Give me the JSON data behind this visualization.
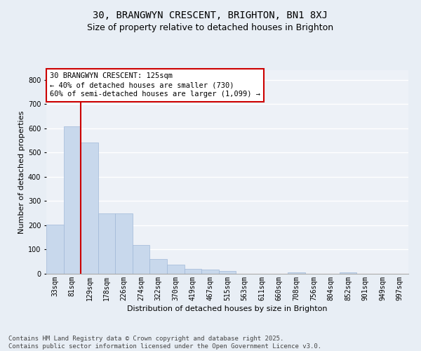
{
  "title1": "30, BRANGWYN CRESCENT, BRIGHTON, BN1 8XJ",
  "title2": "Size of property relative to detached houses in Brighton",
  "xlabel": "Distribution of detached houses by size in Brighton",
  "ylabel": "Number of detached properties",
  "categories": [
    "33sqm",
    "81sqm",
    "129sqm",
    "178sqm",
    "226sqm",
    "274sqm",
    "322sqm",
    "370sqm",
    "419sqm",
    "467sqm",
    "515sqm",
    "563sqm",
    "611sqm",
    "660sqm",
    "708sqm",
    "756sqm",
    "804sqm",
    "852sqm",
    "901sqm",
    "949sqm",
    "997sqm"
  ],
  "values": [
    203,
    607,
    543,
    250,
    250,
    120,
    60,
    38,
    20,
    17,
    12,
    0,
    0,
    0,
    6,
    0,
    0,
    5,
    0,
    0,
    0
  ],
  "bar_color": "#c8d8ec",
  "bar_edge_color": "#a0b8d8",
  "vline_color": "#cc0000",
  "vline_x_index": 1.5,
  "annotation_text": "30 BRANGWYN CRESCENT: 125sqm\n← 40% of detached houses are smaller (730)\n60% of semi-detached houses are larger (1,099) →",
  "annotation_box_facecolor": "#ffffff",
  "annotation_box_edgecolor": "#cc0000",
  "ylim": [
    0,
    840
  ],
  "yticks": [
    0,
    100,
    200,
    300,
    400,
    500,
    600,
    700,
    800
  ],
  "footnote": "Contains HM Land Registry data © Crown copyright and database right 2025.\nContains public sector information licensed under the Open Government Licence v3.0.",
  "bg_color": "#e8eef5",
  "plot_bg_color": "#edf1f7",
  "grid_color": "#ffffff",
  "title1_fontsize": 10,
  "title2_fontsize": 9,
  "axis_fontsize": 8,
  "tick_fontsize": 7,
  "footnote_fontsize": 6.5,
  "annotation_fontsize": 7.5
}
